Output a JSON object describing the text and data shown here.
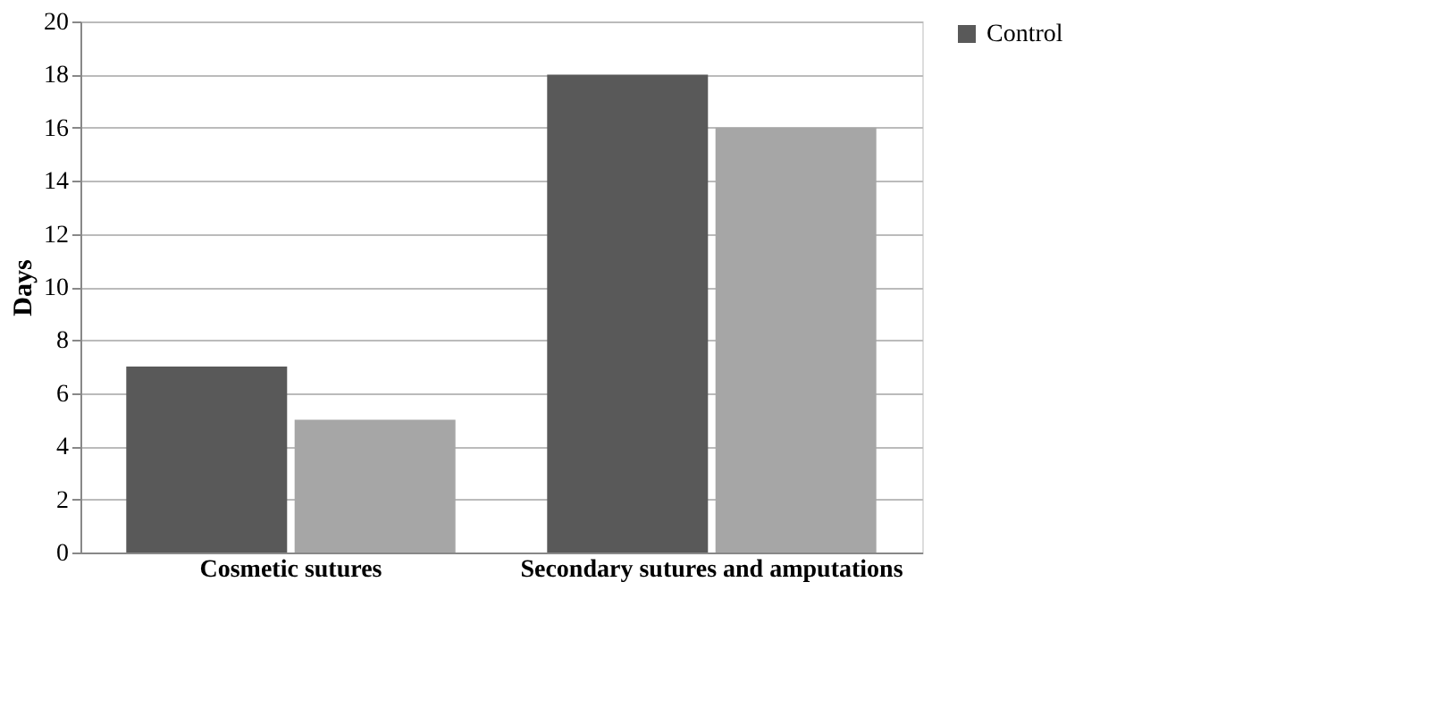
{
  "chart_data": {
    "type": "bar",
    "ylabel": "Days",
    "categories": [
      "Cosmetic sutures",
      "Secondary sutures and amputations"
    ],
    "series": [
      {
        "name": "Control",
        "color": "#595959",
        "values": [
          7,
          18
        ]
      },
      {
        "color": "#a6a6a6",
        "values": [
          5,
          16
        ]
      }
    ],
    "ylim": [
      0,
      20
    ],
    "yticks": [
      0,
      2,
      4,
      6,
      8,
      10,
      12,
      14,
      16,
      18,
      20
    ],
    "grid": "y",
    "legend": "right"
  }
}
